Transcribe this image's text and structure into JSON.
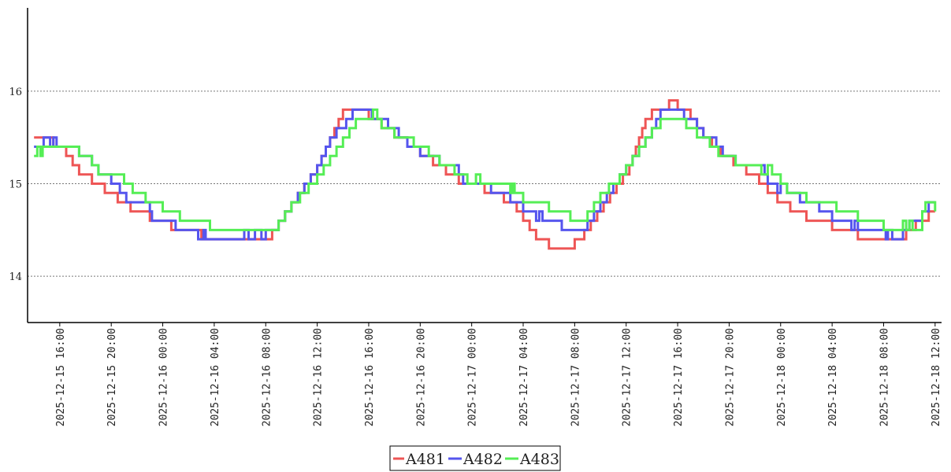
{
  "chart_data": {
    "type": "line",
    "step": true,
    "title": "",
    "xlabel": "",
    "ylabel": "",
    "ylim": [
      13.5,
      16.9
    ],
    "xlim": [
      "2025-12-15 13:30",
      "2025-12-18 12:30"
    ],
    "grid": "horizontal dotted",
    "legend_position": "bottom",
    "y_ticks": [
      "14",
      "15",
      "16"
    ],
    "x_ticks": [
      "2025-12-15 16:00",
      "2025-12-15 20:00",
      "2025-12-16 00:00",
      "2025-12-16 04:00",
      "2025-12-16 08:00",
      "2025-12-16 12:00",
      "2025-12-16 16:00",
      "2025-12-16 20:00",
      "2025-12-17 00:00",
      "2025-12-17 04:00",
      "2025-12-17 08:00",
      "2025-12-17 12:00",
      "2025-12-17 16:00",
      "2025-12-17 20:00",
      "2025-12-18 00:00",
      "2025-12-18 04:00",
      "2025-12-18 08:00",
      "2025-12-18 12:00"
    ],
    "series": [
      {
        "name": "A481",
        "color": "#ee5555",
        "points": [
          [
            "2025-12-15 14:00",
            15.5
          ],
          [
            "2025-12-15 15:30",
            15.4
          ],
          [
            "2025-12-15 16:30",
            15.3
          ],
          [
            "2025-12-15 17:00",
            15.2
          ],
          [
            "2025-12-15 17:30",
            15.1
          ],
          [
            "2025-12-15 18:30",
            15.0
          ],
          [
            "2025-12-15 19:30",
            14.9
          ],
          [
            "2025-12-15 20:30",
            14.8
          ],
          [
            "2025-12-15 21:30",
            14.7
          ],
          [
            "2025-12-15 23:00",
            14.6
          ],
          [
            "2025-12-16 00:40",
            14.5
          ],
          [
            "2025-12-16 03:00",
            14.4
          ],
          [
            "2025-12-16 08:30",
            14.5
          ],
          [
            "2025-12-16 09:00",
            14.6
          ],
          [
            "2025-12-16 09:30",
            14.7
          ],
          [
            "2025-12-16 10:00",
            14.8
          ],
          [
            "2025-12-16 10:30",
            14.9
          ],
          [
            "2025-12-16 11:00",
            15.0
          ],
          [
            "2025-12-16 11:30",
            15.1
          ],
          [
            "2025-12-16 12:00",
            15.2
          ],
          [
            "2025-12-16 12:20",
            15.3
          ],
          [
            "2025-12-16 12:40",
            15.4
          ],
          [
            "2025-12-16 13:00",
            15.5
          ],
          [
            "2025-12-16 13:20",
            15.6
          ],
          [
            "2025-12-16 13:40",
            15.7
          ],
          [
            "2025-12-16 14:00",
            15.8
          ],
          [
            "2025-12-16 16:00",
            15.7
          ],
          [
            "2025-12-16 17:00",
            15.6
          ],
          [
            "2025-12-16 18:00",
            15.5
          ],
          [
            "2025-12-16 19:00",
            15.4
          ],
          [
            "2025-12-16 20:00",
            15.3
          ],
          [
            "2025-12-16 21:00",
            15.2
          ],
          [
            "2025-12-16 22:00",
            15.1
          ],
          [
            "2025-12-16 23:00",
            15.0
          ],
          [
            "2025-12-17 01:00",
            14.9
          ],
          [
            "2025-12-17 02:30",
            14.8
          ],
          [
            "2025-12-17 03:30",
            14.7
          ],
          [
            "2025-12-17 04:00",
            14.6
          ],
          [
            "2025-12-17 04:30",
            14.5
          ],
          [
            "2025-12-17 05:00",
            14.4
          ],
          [
            "2025-12-17 06:00",
            14.3
          ],
          [
            "2025-12-17 08:00",
            14.4
          ],
          [
            "2025-12-17 08:45",
            14.5
          ],
          [
            "2025-12-17 09:15",
            14.6
          ],
          [
            "2025-12-17 09:45",
            14.7
          ],
          [
            "2025-12-17 10:15",
            14.8
          ],
          [
            "2025-12-17 10:45",
            14.9
          ],
          [
            "2025-12-17 11:15",
            15.0
          ],
          [
            "2025-12-17 11:45",
            15.1
          ],
          [
            "2025-12-17 12:15",
            15.2
          ],
          [
            "2025-12-17 12:30",
            15.3
          ],
          [
            "2025-12-17 12:45",
            15.4
          ],
          [
            "2025-12-17 13:00",
            15.5
          ],
          [
            "2025-12-17 13:15",
            15.6
          ],
          [
            "2025-12-17 13:30",
            15.7
          ],
          [
            "2025-12-17 14:00",
            15.8
          ],
          [
            "2025-12-17 15:20",
            15.9
          ],
          [
            "2025-12-17 16:00",
            15.8
          ],
          [
            "2025-12-17 17:00",
            15.7
          ],
          [
            "2025-12-17 17:30",
            15.6
          ],
          [
            "2025-12-17 18:00",
            15.5
          ],
          [
            "2025-12-17 18:40",
            15.4
          ],
          [
            "2025-12-17 19:20",
            15.3
          ],
          [
            "2025-12-17 20:20",
            15.2
          ],
          [
            "2025-12-17 21:20",
            15.1
          ],
          [
            "2025-12-17 22:20",
            15.0
          ],
          [
            "2025-12-17 23:00",
            14.9
          ],
          [
            "2025-12-17 23:45",
            14.8
          ],
          [
            "2025-12-18 00:45",
            14.7
          ],
          [
            "2025-12-18 02:00",
            14.6
          ],
          [
            "2025-12-18 04:00",
            14.5
          ],
          [
            "2025-12-18 06:00",
            14.4
          ],
          [
            "2025-12-18 09:45",
            14.5
          ],
          [
            "2025-12-18 10:30",
            14.6
          ],
          [
            "2025-12-18 11:30",
            14.7
          ],
          [
            "2025-12-18 12:00",
            14.7
          ]
        ]
      },
      {
        "name": "A482",
        "color": "#5555ee",
        "points": [
          [
            "2025-12-15 14:00",
            15.4
          ],
          [
            "2025-12-15 14:45",
            15.5
          ],
          [
            "2025-12-15 15:15",
            15.4
          ],
          [
            "2025-12-15 15:30",
            15.5
          ],
          [
            "2025-12-15 15:45",
            15.4
          ],
          [
            "2025-12-15 17:30",
            15.3
          ],
          [
            "2025-12-15 18:30",
            15.2
          ],
          [
            "2025-12-15 19:00",
            15.1
          ],
          [
            "2025-12-15 20:00",
            15.0
          ],
          [
            "2025-12-15 20:40",
            14.9
          ],
          [
            "2025-12-15 21:10",
            14.8
          ],
          [
            "2025-12-15 23:00",
            14.7
          ],
          [
            "2025-12-15 23:10",
            14.6
          ],
          [
            "2025-12-16 01:00",
            14.5
          ],
          [
            "2025-12-16 02:45",
            14.4
          ],
          [
            "2025-12-16 03:10",
            14.5
          ],
          [
            "2025-12-16 03:20",
            14.4
          ],
          [
            "2025-12-16 06:20",
            14.5
          ],
          [
            "2025-12-16 06:40",
            14.4
          ],
          [
            "2025-12-16 07:10",
            14.5
          ],
          [
            "2025-12-16 07:40",
            14.4
          ],
          [
            "2025-12-16 08:00",
            14.5
          ],
          [
            "2025-12-16 09:00",
            14.6
          ],
          [
            "2025-12-16 09:30",
            14.7
          ],
          [
            "2025-12-16 10:00",
            14.8
          ],
          [
            "2025-12-16 10:30",
            14.9
          ],
          [
            "2025-12-16 11:00",
            15.0
          ],
          [
            "2025-12-16 11:30",
            15.1
          ],
          [
            "2025-12-16 12:00",
            15.2
          ],
          [
            "2025-12-16 12:20",
            15.3
          ],
          [
            "2025-12-16 12:40",
            15.4
          ],
          [
            "2025-12-16 13:00",
            15.5
          ],
          [
            "2025-12-16 13:30",
            15.6
          ],
          [
            "2025-12-16 14:15",
            15.7
          ],
          [
            "2025-12-16 14:45",
            15.8
          ],
          [
            "2025-12-16 16:15",
            15.7
          ],
          [
            "2025-12-16 17:30",
            15.6
          ],
          [
            "2025-12-16 18:20",
            15.5
          ],
          [
            "2025-12-16 19:00",
            15.4
          ],
          [
            "2025-12-16 20:00",
            15.3
          ],
          [
            "2025-12-16 21:30",
            15.2
          ],
          [
            "2025-12-16 23:00",
            15.1
          ],
          [
            "2025-12-16 23:20",
            15.0
          ],
          [
            "2025-12-17 01:30",
            14.9
          ],
          [
            "2025-12-17 03:00",
            14.8
          ],
          [
            "2025-12-17 04:00",
            14.7
          ],
          [
            "2025-12-17 05:00",
            14.6
          ],
          [
            "2025-12-17 05:15",
            14.7
          ],
          [
            "2025-12-17 05:30",
            14.6
          ],
          [
            "2025-12-17 07:00",
            14.5
          ],
          [
            "2025-12-17 09:00",
            14.6
          ],
          [
            "2025-12-17 09:30",
            14.7
          ],
          [
            "2025-12-17 10:00",
            14.8
          ],
          [
            "2025-12-17 10:30",
            14.9
          ],
          [
            "2025-12-17 11:00",
            15.0
          ],
          [
            "2025-12-17 11:30",
            15.1
          ],
          [
            "2025-12-17 12:00",
            15.2
          ],
          [
            "2025-12-17 12:30",
            15.3
          ],
          [
            "2025-12-17 13:00",
            15.4
          ],
          [
            "2025-12-17 13:30",
            15.5
          ],
          [
            "2025-12-17 14:00",
            15.6
          ],
          [
            "2025-12-17 14:20",
            15.7
          ],
          [
            "2025-12-17 14:40",
            15.8
          ],
          [
            "2025-12-17 16:30",
            15.7
          ],
          [
            "2025-12-17 17:30",
            15.6
          ],
          [
            "2025-12-17 18:00",
            15.5
          ],
          [
            "2025-12-17 19:00",
            15.4
          ],
          [
            "2025-12-17 19:30",
            15.3
          ],
          [
            "2025-12-17 20:30",
            15.2
          ],
          [
            "2025-12-17 22:45",
            15.1
          ],
          [
            "2025-12-17 23:00",
            15.0
          ],
          [
            "2025-12-17 23:45",
            14.9
          ],
          [
            "2025-12-18 00:00",
            15.0
          ],
          [
            "2025-12-18 00:30",
            14.9
          ],
          [
            "2025-12-18 01:30",
            14.8
          ],
          [
            "2025-12-18 03:00",
            14.7
          ],
          [
            "2025-12-18 04:00",
            14.6
          ],
          [
            "2025-12-18 05:30",
            14.5
          ],
          [
            "2025-12-18 05:45",
            14.6
          ],
          [
            "2025-12-18 06:00",
            14.5
          ],
          [
            "2025-12-18 08:10",
            14.4
          ],
          [
            "2025-12-18 08:20",
            14.5
          ],
          [
            "2025-12-18 08:40",
            14.4
          ],
          [
            "2025-12-18 09:30",
            14.5
          ],
          [
            "2025-12-18 10:00",
            14.6
          ],
          [
            "2025-12-18 11:00",
            14.7
          ],
          [
            "2025-12-18 11:30",
            14.8
          ],
          [
            "2025-12-18 12:00",
            14.8
          ]
        ]
      },
      {
        "name": "A483",
        "color": "#55ee55",
        "points": [
          [
            "2025-12-15 14:00",
            15.3
          ],
          [
            "2025-12-15 14:15",
            15.4
          ],
          [
            "2025-12-15 14:30",
            15.3
          ],
          [
            "2025-12-15 14:40",
            15.4
          ],
          [
            "2025-12-15 16:00",
            15.4
          ],
          [
            "2025-12-15 17:30",
            15.3
          ],
          [
            "2025-12-15 18:30",
            15.2
          ],
          [
            "2025-12-15 19:00",
            15.1
          ],
          [
            "2025-12-15 21:00",
            15.0
          ],
          [
            "2025-12-15 21:40",
            14.9
          ],
          [
            "2025-12-15 22:40",
            14.8
          ],
          [
            "2025-12-16 00:00",
            14.7
          ],
          [
            "2025-12-16 01:20",
            14.6
          ],
          [
            "2025-12-16 03:40",
            14.5
          ],
          [
            "2025-12-16 08:30",
            14.5
          ],
          [
            "2025-12-16 09:00",
            14.6
          ],
          [
            "2025-12-16 09:30",
            14.7
          ],
          [
            "2025-12-16 10:00",
            14.8
          ],
          [
            "2025-12-16 10:40",
            14.9
          ],
          [
            "2025-12-16 11:20",
            15.0
          ],
          [
            "2025-12-16 12:00",
            15.1
          ],
          [
            "2025-12-16 12:30",
            15.2
          ],
          [
            "2025-12-16 13:00",
            15.3
          ],
          [
            "2025-12-16 13:30",
            15.4
          ],
          [
            "2025-12-16 14:00",
            15.5
          ],
          [
            "2025-12-16 14:30",
            15.6
          ],
          [
            "2025-12-16 15:00",
            15.7
          ],
          [
            "2025-12-16 16:20",
            15.8
          ],
          [
            "2025-12-16 16:40",
            15.7
          ],
          [
            "2025-12-16 17:00",
            15.6
          ],
          [
            "2025-12-16 18:00",
            15.5
          ],
          [
            "2025-12-16 19:30",
            15.4
          ],
          [
            "2025-12-16 20:40",
            15.3
          ],
          [
            "2025-12-16 21:30",
            15.2
          ],
          [
            "2025-12-16 22:40",
            15.1
          ],
          [
            "2025-12-16 23:40",
            15.0
          ],
          [
            "2025-12-17 00:20",
            15.1
          ],
          [
            "2025-12-17 00:40",
            15.0
          ],
          [
            "2025-12-17 03:00",
            14.9
          ],
          [
            "2025-12-17 03:10",
            15.0
          ],
          [
            "2025-12-17 03:20",
            14.9
          ],
          [
            "2025-12-17 04:00",
            14.8
          ],
          [
            "2025-12-17 06:00",
            14.7
          ],
          [
            "2025-12-17 07:40",
            14.6
          ],
          [
            "2025-12-17 09:00",
            14.7
          ],
          [
            "2025-12-17 09:30",
            14.8
          ],
          [
            "2025-12-17 10:00",
            14.9
          ],
          [
            "2025-12-17 10:40",
            15.0
          ],
          [
            "2025-12-17 11:30",
            15.1
          ],
          [
            "2025-12-17 12:00",
            15.2
          ],
          [
            "2025-12-17 12:30",
            15.3
          ],
          [
            "2025-12-17 13:00",
            15.4
          ],
          [
            "2025-12-17 13:30",
            15.5
          ],
          [
            "2025-12-17 14:00",
            15.6
          ],
          [
            "2025-12-17 14:40",
            15.7
          ],
          [
            "2025-12-17 16:40",
            15.6
          ],
          [
            "2025-12-17 17:30",
            15.5
          ],
          [
            "2025-12-17 18:30",
            15.4
          ],
          [
            "2025-12-17 19:10",
            15.3
          ],
          [
            "2025-12-17 20:30",
            15.2
          ],
          [
            "2025-12-17 22:30",
            15.1
          ],
          [
            "2025-12-17 23:00",
            15.2
          ],
          [
            "2025-12-17 23:20",
            15.1
          ],
          [
            "2025-12-18 00:00",
            15.0
          ],
          [
            "2025-12-18 00:30",
            14.9
          ],
          [
            "2025-12-18 02:00",
            14.8
          ],
          [
            "2025-12-18 04:20",
            14.7
          ],
          [
            "2025-12-18 06:00",
            14.6
          ],
          [
            "2025-12-18 08:00",
            14.5
          ],
          [
            "2025-12-18 09:30",
            14.6
          ],
          [
            "2025-12-18 09:45",
            14.5
          ],
          [
            "2025-12-18 10:00",
            14.6
          ],
          [
            "2025-12-18 10:15",
            14.5
          ],
          [
            "2025-12-18 11:00",
            14.7
          ],
          [
            "2025-12-18 11:15",
            14.8
          ],
          [
            "2025-12-18 12:00",
            14.7
          ]
        ]
      }
    ]
  }
}
